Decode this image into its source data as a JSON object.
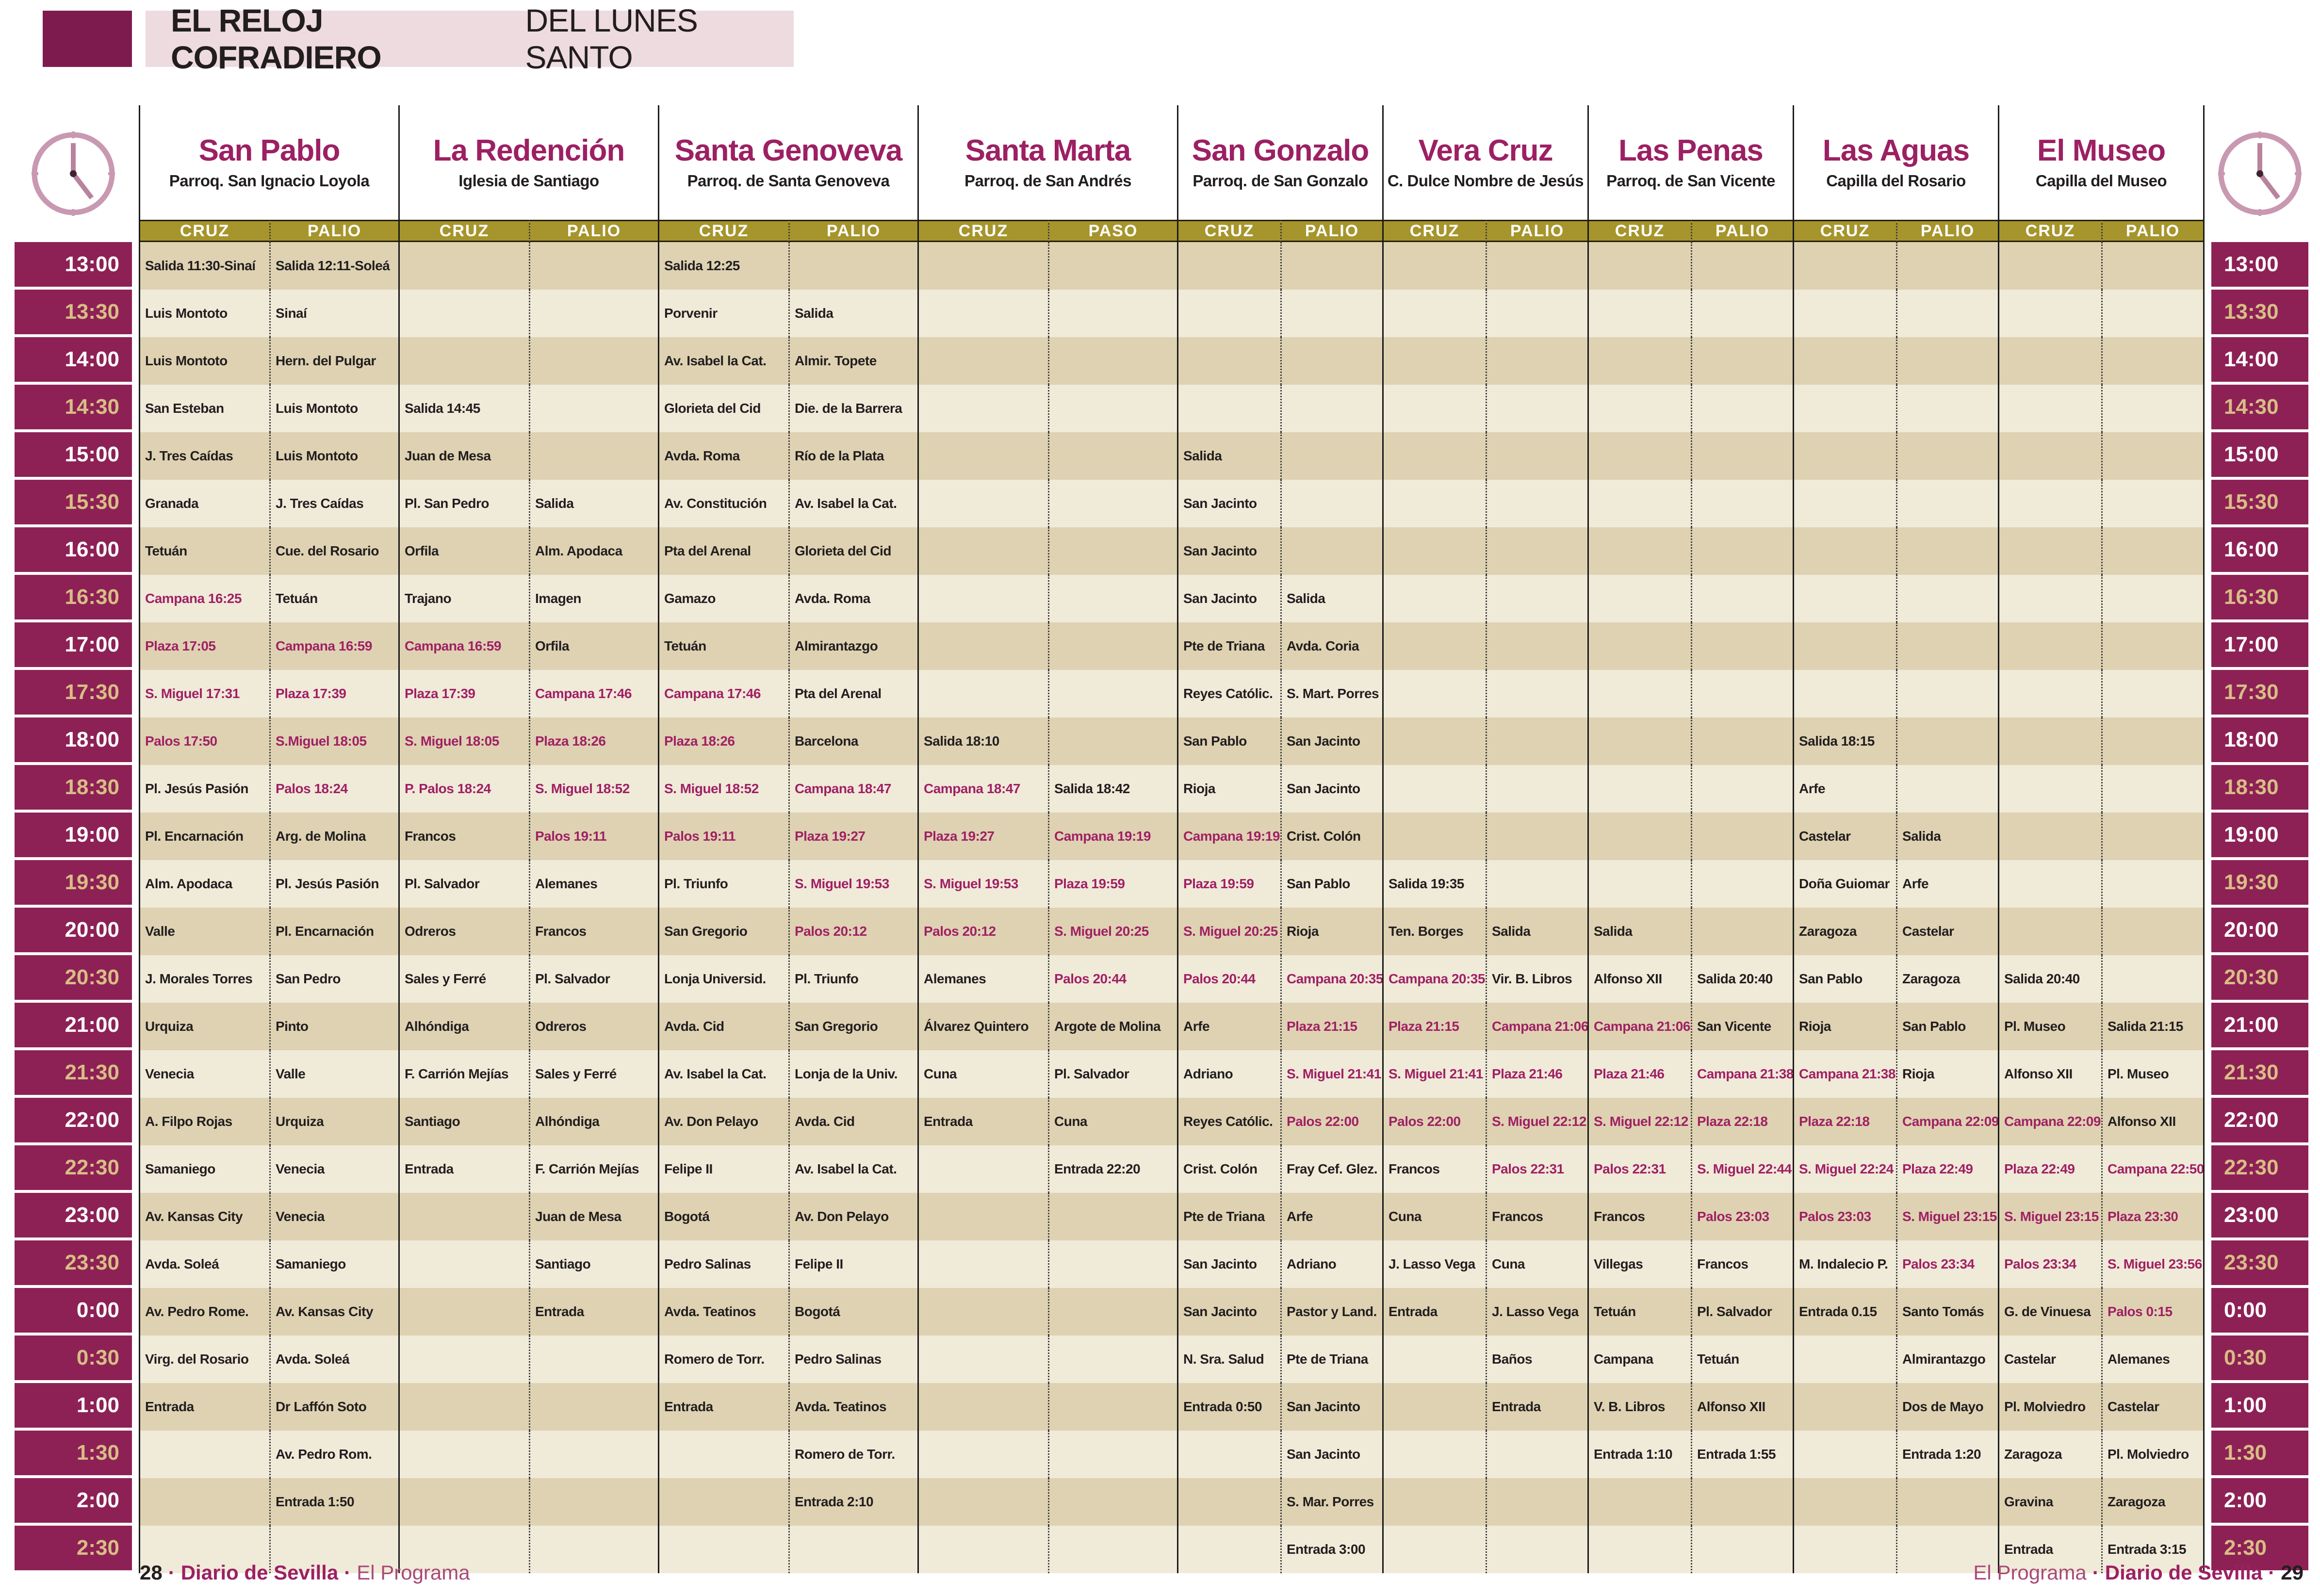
{
  "title": {
    "bold": "EL RELOJ COFRADIERO",
    "regular": "DEL LUNES SANTO"
  },
  "colors": {
    "maroon": "#8d2155",
    "name_maroon": "#9c2063",
    "red_text": "#a02064",
    "gold_bar": "#a6952c",
    "gold_time": "#d8bd85",
    "row_dark": "#ded2b2",
    "row_light": "#f0ead9",
    "banner_pink": "#eddbe0",
    "corner_block": "#7d1b4e",
    "clock_pink": "#c998b1"
  },
  "times": [
    "13:00",
    "13:30",
    "14:00",
    "14:30",
    "15:00",
    "15:30",
    "16:00",
    "16:30",
    "17:00",
    "17:30",
    "18:00",
    "18:30",
    "19:00",
    "19:30",
    "20:00",
    "20:30",
    "21:00",
    "21:30",
    "22:00",
    "22:30",
    "23:00",
    "23:30",
    "0:00",
    "0:30",
    "1:00",
    "1:30",
    "2:00",
    "2:30"
  ],
  "brotherhoods": [
    {
      "name": "San Pablo",
      "parish": "Parroq. San Ignacio Loyola",
      "columns": [
        "CRUZ",
        "PALIO"
      ],
      "cruz": [
        "Salida 11:30-Sinaí",
        "Luis Montoto",
        "Luis Montoto",
        "San Esteban",
        "J. Tres Caídas",
        "Granada",
        "Tetuán",
        {
          "t": "Campana 16:25",
          "r": true
        },
        {
          "t": "Plaza 17:05",
          "r": true
        },
        {
          "t": "S. Miguel 17:31",
          "r": true
        },
        {
          "t": "Palos 17:50",
          "r": true
        },
        "Pl. Jesús Pasión",
        "Pl. Encarnación",
        "Alm. Apodaca",
        "Valle",
        "J. Morales Torres",
        "Urquiza",
        "Venecia",
        "A. Filpo Rojas",
        "Samaniego",
        "Av. Kansas City",
        "Avda. Soleá",
        "Av. Pedro Rome.",
        "Virg. del Rosario",
        "Entrada",
        null,
        null,
        null
      ],
      "palio": [
        "Salida 12:11-Soleá",
        "Sinaí",
        "Hern. del Pulgar",
        "Luis Montoto",
        "Luis Montoto",
        "J. Tres Caídas",
        "Cue. del Rosario",
        "Tetuán",
        {
          "t": "Campana 16:59",
          "r": true
        },
        {
          "t": "Plaza 17:39",
          "r": true
        },
        {
          "t": "S.Miguel 18:05",
          "r": true
        },
        {
          "t": "Palos 18:24",
          "r": true
        },
        "Arg. de Molina",
        "Pl. Jesús Pasión",
        "Pl. Encarnación",
        "San Pedro",
        "Pinto",
        "Valle",
        "Urquiza",
        "Venecia",
        "Venecia",
        "Samaniego",
        "Av. Kansas City",
        "Avda. Soleá",
        "Dr Laffón Soto",
        "Av. Pedro Rom.",
        "Entrada 1:50",
        null
      ]
    },
    {
      "name": "La Redención",
      "parish": "Iglesia de Santiago",
      "columns": [
        "CRUZ",
        "PALIO"
      ],
      "cruz": [
        null,
        null,
        null,
        "Salida 14:45",
        "Juan de Mesa",
        "Pl. San Pedro",
        "Orfila",
        "Trajano",
        {
          "t": "Campana 16:59",
          "r": true
        },
        {
          "t": "Plaza 17:39",
          "r": true
        },
        {
          "t": "S. Miguel 18:05",
          "r": true
        },
        {
          "t": "P. Palos 18:24",
          "r": true
        },
        "Francos",
        "Pl. Salvador",
        "Odreros",
        "Sales y Ferré",
        "Alhóndiga",
        "F. Carrión Mejías",
        "Santiago",
        "Entrada",
        null,
        null,
        null,
        null,
        null,
        null,
        null,
        null
      ],
      "palio": [
        null,
        null,
        null,
        null,
        null,
        "Salida",
        "Alm. Apodaca",
        "Imagen",
        "Orfila",
        {
          "t": "Campana 17:46",
          "r": true
        },
        {
          "t": "Plaza 18:26",
          "r": true
        },
        {
          "t": "S. Miguel 18:52",
          "r": true
        },
        {
          "t": "Palos 19:11",
          "r": true
        },
        "Alemanes",
        "Francos",
        "Pl. Salvador",
        "Odreros",
        "Sales y Ferré",
        "Alhóndiga",
        "F. Carrión Mejías",
        "Juan de Mesa",
        "Santiago",
        "Entrada",
        null,
        null,
        null,
        null,
        null
      ]
    },
    {
      "name": "Santa Genoveva",
      "parish": "Parroq. de Santa Genoveva",
      "columns": [
        "CRUZ",
        "PALIO"
      ],
      "cruz": [
        "Salida 12:25",
        "Porvenir",
        "Av. Isabel la Cat.",
        "Glorieta del Cid",
        "Avda. Roma",
        "Av. Constitución",
        "Pta del Arenal",
        "Gamazo",
        "Tetuán",
        {
          "t": "Campana 17:46",
          "r": true
        },
        {
          "t": "Plaza 18:26",
          "r": true
        },
        {
          "t": "S. Miguel 18:52",
          "r": true
        },
        {
          "t": "Palos 19:11",
          "r": true
        },
        "Pl. Triunfo",
        "San Gregorio",
        "Lonja Universid.",
        "Avda. Cid",
        "Av. Isabel la Cat.",
        "Av. Don Pelayo",
        "Felipe II",
        "Bogotá",
        "Pedro Salinas",
        "Avda. Teatinos",
        "Romero de Torr.",
        "Entrada",
        null,
        null,
        null
      ],
      "palio": [
        null,
        "Salida",
        "Almir. Topete",
        "Die. de la Barrera",
        "Río de la Plata",
        "Av. Isabel la Cat.",
        "Glorieta del Cid",
        "Avda. Roma",
        "Almirantazgo",
        "Pta del Arenal",
        "Barcelona",
        {
          "t": "Campana 18:47",
          "r": true
        },
        {
          "t": "Plaza 19:27",
          "r": true
        },
        {
          "t": "S. Miguel 19:53",
          "r": true
        },
        {
          "t": "Palos 20:12",
          "r": true
        },
        "Pl. Triunfo",
        "San Gregorio",
        "Lonja de la Univ.",
        "Avda. Cid",
        "Av. Isabel la Cat.",
        "Av. Don Pelayo",
        "Felipe II",
        "Bogotá",
        "Pedro Salinas",
        "Avda. Teatinos",
        "Romero de Torr.",
        "Entrada 2:10",
        null
      ]
    },
    {
      "name": "Santa Marta",
      "parish": "Parroq. de San Andrés",
      "columns": [
        "CRUZ",
        "PASO"
      ],
      "cruz": [
        null,
        null,
        null,
        null,
        null,
        null,
        null,
        null,
        null,
        null,
        "Salida 18:10",
        {
          "t": "Campana 18:47",
          "r": true
        },
        {
          "t": "Plaza 19:27",
          "r": true
        },
        {
          "t": "S. Miguel 19:53",
          "r": true
        },
        {
          "t": "Palos 20:12",
          "r": true
        },
        "Alemanes",
        "Álvarez Quintero",
        "Cuna",
        "Entrada",
        null,
        null,
        null,
        null,
        null,
        null,
        null,
        null,
        null
      ],
      "palio": [
        null,
        null,
        null,
        null,
        null,
        null,
        null,
        null,
        null,
        null,
        null,
        "Salida 18:42",
        {
          "t": "Campana 19:19",
          "r": true
        },
        {
          "t": "Plaza 19:59",
          "r": true
        },
        {
          "t": "S. Miguel 20:25",
          "r": true
        },
        {
          "t": "Palos 20:44",
          "r": true
        },
        "Argote de Molina",
        "Pl. Salvador",
        "Cuna",
        "Entrada 22:20",
        null,
        null,
        null,
        null,
        null,
        null,
        null,
        null
      ]
    },
    {
      "name": "San Gonzalo",
      "parish": "Parroq. de San Gonzalo",
      "columns": [
        "CRUZ",
        "PALIO"
      ],
      "cruz": [
        null,
        null,
        null,
        null,
        "Salida",
        "San Jacinto",
        "San Jacinto",
        "San Jacinto",
        "Pte de Triana",
        "Reyes Católic.",
        "San Pablo",
        "Rioja",
        {
          "t": "Campana 19:19",
          "r": true
        },
        {
          "t": "Plaza 19:59",
          "r": true
        },
        {
          "t": "S. Miguel 20:25",
          "r": true
        },
        {
          "t": "Palos 20:44",
          "r": true
        },
        "Arfe",
        "Adriano",
        "Reyes Católic.",
        "Crist. Colón",
        "Pte de Triana",
        "San Jacinto",
        "San Jacinto",
        "N. Sra. Salud",
        "Entrada 0:50",
        null,
        null,
        null
      ],
      "palio": [
        null,
        null,
        null,
        null,
        null,
        null,
        null,
        "Salida",
        "Avda. Coria",
        "S. Mart. Porres",
        "San Jacinto",
        "San Jacinto",
        "Crist. Colón",
        "San Pablo",
        "Rioja",
        {
          "t": "Campana 20:35",
          "r": true
        },
        {
          "t": "Plaza 21:15",
          "r": true
        },
        {
          "t": "S. Miguel 21:41",
          "r": true
        },
        {
          "t": "Palos 22:00",
          "r": true
        },
        "Fray Cef. Glez.",
        "Arfe",
        "Adriano",
        "Pastor y Land.",
        "Pte de Triana",
        "San Jacinto",
        "San Jacinto",
        "S. Mar. Porres",
        "Entrada 3:00"
      ]
    },
    {
      "name": "Vera Cruz",
      "parish": "C. Dulce Nombre de Jesús",
      "columns": [
        "CRUZ",
        "PALIO"
      ],
      "cruz": [
        null,
        null,
        null,
        null,
        null,
        null,
        null,
        null,
        null,
        null,
        null,
        null,
        null,
        "Salida 19:35",
        "Ten. Borges",
        {
          "t": "Campana 20:35",
          "r": true
        },
        {
          "t": "Plaza 21:15",
          "r": true
        },
        {
          "t": "S. Miguel 21:41",
          "r": true
        },
        {
          "t": "Palos 22:00",
          "r": true
        },
        "Francos",
        "Cuna",
        "J. Lasso Vega",
        "Entrada",
        null,
        null,
        null,
        null,
        null
      ],
      "palio": [
        null,
        null,
        null,
        null,
        null,
        null,
        null,
        null,
        null,
        null,
        null,
        null,
        null,
        null,
        "Salida",
        "Vir. B. Libros",
        {
          "t": "Campana 21:06",
          "r": true
        },
        {
          "t": "Plaza 21:46",
          "r": true
        },
        {
          "t": "S. Miguel 22:12",
          "r": true
        },
        {
          "t": "Palos 22:31",
          "r": true
        },
        "Francos",
        "Cuna",
        "J. Lasso Vega",
        "Baños",
        "Entrada",
        null,
        null,
        null
      ]
    },
    {
      "name": "Las Penas",
      "parish": "Parroq. de San Vicente",
      "columns": [
        "CRUZ",
        "PALIO"
      ],
      "cruz": [
        null,
        null,
        null,
        null,
        null,
        null,
        null,
        null,
        null,
        null,
        null,
        null,
        null,
        null,
        "Salida",
        "Alfonso XII",
        {
          "t": "Campana 21:06",
          "r": true
        },
        {
          "t": "Plaza 21:46",
          "r": true
        },
        {
          "t": "S. Miguel 22:12",
          "r": true
        },
        {
          "t": "Palos 22:31",
          "r": true
        },
        "Francos",
        "Villegas",
        "Tetuán",
        "Campana",
        "V. B. Libros",
        "Entrada 1:10",
        null,
        null
      ],
      "palio": [
        null,
        null,
        null,
        null,
        null,
        null,
        null,
        null,
        null,
        null,
        null,
        null,
        null,
        null,
        null,
        "Salida 20:40",
        "San Vicente",
        {
          "t": "Campana 21:38",
          "r": true
        },
        {
          "t": "Plaza 22:18",
          "r": true
        },
        {
          "t": "S. Miguel 22:44",
          "r": true
        },
        {
          "t": "Palos 23:03",
          "r": true
        },
        "Francos",
        "Pl. Salvador",
        "Tetuán",
        "Alfonso XII",
        "Entrada 1:55",
        null,
        null
      ]
    },
    {
      "name": "Las Aguas",
      "parish": "Capilla del Rosario",
      "columns": [
        "CRUZ",
        "PALIO"
      ],
      "cruz": [
        null,
        null,
        null,
        null,
        null,
        null,
        null,
        null,
        null,
        null,
        "Salida 18:15",
        "Arfe",
        "Castelar",
        "Doña Guiomar",
        "Zaragoza",
        "San Pablo",
        "Rioja",
        {
          "t": "Campana 21:38",
          "r": true
        },
        {
          "t": "Plaza 22:18",
          "r": true
        },
        {
          "t": "S. Miguel 22:24",
          "r": true
        },
        {
          "t": "Palos 23:03",
          "r": true
        },
        "M. Indalecio P.",
        "Entrada 0.15",
        null,
        null,
        null,
        null,
        null
      ],
      "palio": [
        null,
        null,
        null,
        null,
        null,
        null,
        null,
        null,
        null,
        null,
        null,
        null,
        "Salida",
        "Arfe",
        "Castelar",
        "Zaragoza",
        "San Pablo",
        "Rioja",
        {
          "t": "Campana 22:09",
          "r": true
        },
        {
          "t": "Plaza 22:49",
          "r": true
        },
        {
          "t": "S. Miguel 23:15",
          "r": true
        },
        {
          "t": "Palos 23:34",
          "r": true
        },
        "Santo Tomás",
        "Almirantazgo",
        "Dos de Mayo",
        "Entrada 1:20",
        null,
        null
      ]
    },
    {
      "name": "El Museo",
      "parish": "Capilla del Museo",
      "columns": [
        "CRUZ",
        "PALIO"
      ],
      "cruz": [
        null,
        null,
        null,
        null,
        null,
        null,
        null,
        null,
        null,
        null,
        null,
        null,
        null,
        null,
        null,
        "Salida 20:40",
        "Pl. Museo",
        "Alfonso XII",
        {
          "t": "Campana 22:09",
          "r": true
        },
        {
          "t": "Plaza 22:49",
          "r": true
        },
        {
          "t": "S. Miguel 23:15",
          "r": true
        },
        {
          "t": "Palos 23:34",
          "r": true
        },
        "G. de Vinuesa",
        "Castelar",
        "Pl. Molviedro",
        "Zaragoza",
        "Gravina",
        "Entrada"
      ],
      "palio": [
        null,
        null,
        null,
        null,
        null,
        null,
        null,
        null,
        null,
        null,
        null,
        null,
        null,
        null,
        null,
        null,
        "Salida 21:15",
        "Pl. Museo",
        "Alfonso XII",
        {
          "t": "Campana 22:50",
          "r": true
        },
        {
          "t": "Plaza 23:30",
          "r": true
        },
        {
          "t": "S. Miguel 23:56",
          "r": true
        },
        {
          "t": "Palos 0:15",
          "r": true
        },
        "Alemanes",
        "Castelar",
        "Pl. Molviedro",
        "Zaragoza",
        "Entrada 3:15"
      ]
    }
  ],
  "footer": {
    "separator": "·",
    "left": {
      "page": "28",
      "brand": "Diario de Sevilla",
      "program": "El Programa"
    },
    "right": {
      "program": "El Programa",
      "brand": "Diario de Sevilla",
      "page": "29"
    }
  }
}
